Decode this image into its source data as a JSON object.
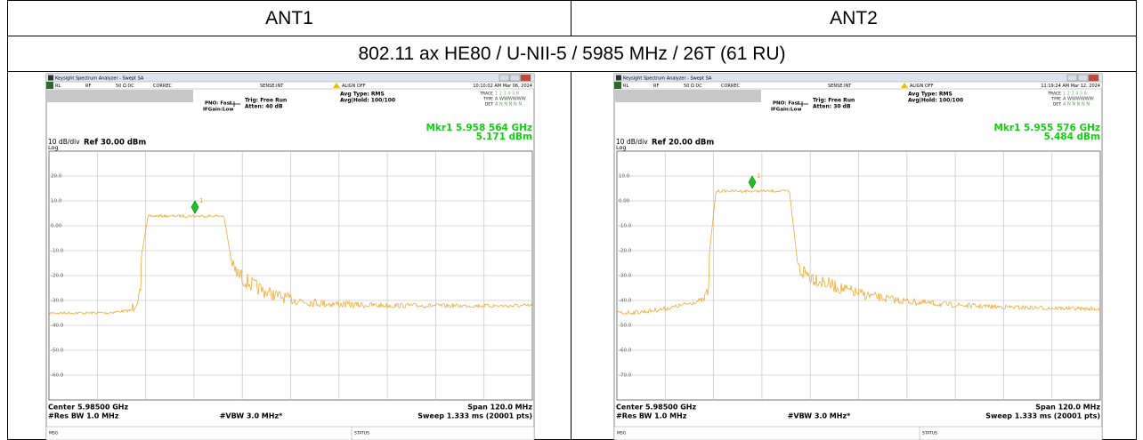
{
  "table": {
    "header": [
      "ANT1",
      "ANT2"
    ],
    "title": "802.11 ax HE80 / U-NII-5 / 5985 MHz / 26T (61 RU)",
    "screens": [
      {
        "window_title": "Keysight Spectrum Analyzer - Swept SA",
        "rl": "RL",
        "rf": "RF",
        "impedance": "50 Ω  DC",
        "correc": "CORREC",
        "sense": "SENSE:INT",
        "align": "ALIGN OFF",
        "datetime": "10:10:02 AM Mar 06, 2024",
        "pno": "PNO: Fast",
        "ifgain": "IFGain:Low",
        "trig": "Trig: Free Run",
        "atten": "Atten: 40 dB",
        "avg_type": "Avg Type: RMS",
        "avg_hold": "Avg|Hold: 100/100",
        "trace_label": "TRACE",
        "trace_nums": "1 2 3 4 5 6",
        "type_label": "TYPE",
        "type_val": "A WWWWWW",
        "det_label": "DET",
        "det_val": "A N N N N N",
        "marker": "Mkr1 5.958 564 GHz",
        "marker_value": "5.171 dBm",
        "scale": "10 dB/div",
        "log": "Log",
        "ref": "Ref 30.00 dBm",
        "yticks": [
          "20.0",
          "10.0",
          "0.00",
          "-10.0",
          "-20.0",
          "-30.0",
          "-40.0",
          "-50.0",
          "-60.0"
        ],
        "marker_id": "1",
        "center": "Center 5.98500 GHz",
        "res_bw": "#Res BW 1.0 MHz",
        "vbw": "#VBW 3.0 MHz*",
        "span": "Span 120.0 MHz",
        "sweep": "Sweep  1.333 ms (20001 pts)",
        "msg": "MSG",
        "status": "STATUS"
      },
      {
        "window_title": "Keysight Spectrum Analyzer - Swept SA",
        "rl": "RL",
        "rf": "RF",
        "impedance": "50 Ω  DC",
        "correc": "CORREC",
        "sense": "SENSE:INT",
        "align": "ALIGN OFF",
        "datetime": "11:19:24 AM Mar 12, 2024",
        "pno": "PNO: Fast",
        "ifgain": "IFGain:Low",
        "trig": "Trig: Free Run",
        "atten": "Atten: 30 dB",
        "avg_type": "Avg Type: RMS",
        "avg_hold": "Avg|Hold: 100/100",
        "trace_label": "TRACE",
        "trace_nums": "1 2 3 4 5 6",
        "type_label": "TYPE",
        "type_val": "A WWWWWW",
        "det_label": "DET",
        "det_val": "A N N N N N",
        "marker": "Mkr1 5.955 576 GHz",
        "marker_value": "5.484 dBm",
        "scale": "10 dB/div",
        "log": "Log",
        "ref": "Ref 20.00 dBm",
        "yticks": [
          "10.0",
          "0.00",
          "-10.0",
          "-20.0",
          "-30.0",
          "-40.0",
          "-50.0",
          "-60.0",
          "-70.0"
        ],
        "marker_id": "1",
        "center": "Center 5.98500 GHz",
        "res_bw": "#Res BW 1.0 MHz",
        "vbw": "#VBW 3.0 MHz*",
        "span": "Span 120.0 MHz",
        "sweep": "Sweep  1.333 ms (20001 pts)",
        "msg": "MSG",
        "status": "STATUS"
      }
    ]
  }
}
